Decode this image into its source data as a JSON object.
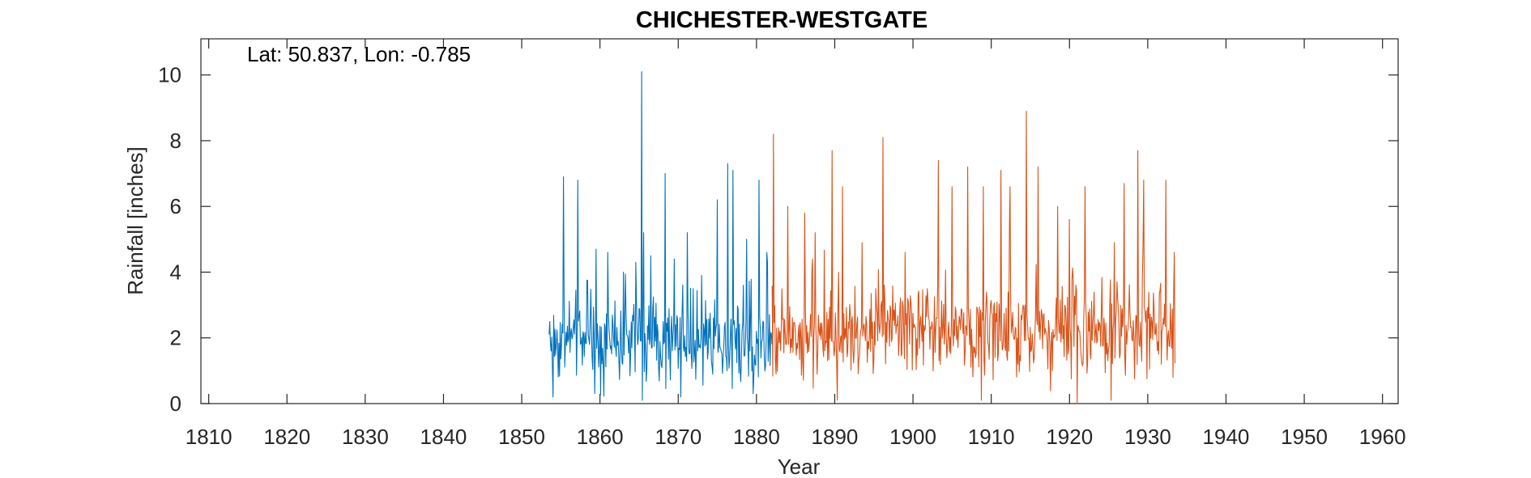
{
  "chart_data": {
    "type": "line",
    "title": "CHICHESTER-WESTGATE",
    "annotation": "Lat: 50.837, Lon: -0.785",
    "xlabel": "Year",
    "ylabel": "Rainfall [inches]",
    "xlim": [
      1809,
      1962
    ],
    "ylim": [
      0,
      11.1
    ],
    "xticks": [
      1810,
      1820,
      1830,
      1840,
      1850,
      1860,
      1870,
      1880,
      1890,
      1900,
      1910,
      1920,
      1930,
      1940,
      1950,
      1960
    ],
    "yticks": [
      0,
      2,
      4,
      6,
      8,
      10
    ],
    "grid": false,
    "legend": "none",
    "note": "monthly series, key points estimated from figure; remaining months are sampled within the visible range",
    "series": [
      {
        "color": "#0072BD",
        "x_start": 1853.5,
        "x_end": 1882.0,
        "step": 0.0833,
        "base": 1.9,
        "spread": 1.2,
        "peaks": [
          [
            1853.6,
            2.5
          ],
          [
            1854.0,
            0.2
          ],
          [
            1855.3,
            6.9
          ],
          [
            1857.2,
            6.8
          ],
          [
            1859.5,
            4.7
          ],
          [
            1861.0,
            4.6
          ],
          [
            1863.0,
            4.0
          ],
          [
            1864.6,
            4.3
          ],
          [
            1865.3,
            10.1
          ],
          [
            1865.6,
            5.2
          ],
          [
            1866.5,
            4.5
          ],
          [
            1868.3,
            7.0
          ],
          [
            1869.5,
            4.4
          ],
          [
            1871.2,
            5.2
          ],
          [
            1873.0,
            3.9
          ],
          [
            1875.0,
            6.2
          ],
          [
            1876.3,
            7.3
          ],
          [
            1877.0,
            7.1
          ],
          [
            1878.7,
            5.0
          ],
          [
            1880.3,
            6.8
          ],
          [
            1881.3,
            4.6
          ],
          [
            1865.4,
            0.1
          ],
          [
            1870.3,
            0.2
          ],
          [
            1879.6,
            0.3
          ]
        ]
      },
      {
        "color": "#D95319",
        "x_start": 1882.0,
        "x_end": 1933.5,
        "step": 0.0833,
        "base": 2.2,
        "spread": 1.3,
        "peaks": [
          [
            1882.2,
            8.2
          ],
          [
            1884.0,
            6.0
          ],
          [
            1886.2,
            5.8
          ],
          [
            1887.5,
            5.2
          ],
          [
            1889.7,
            7.7
          ],
          [
            1891.0,
            6.6
          ],
          [
            1893.5,
            4.9
          ],
          [
            1896.2,
            8.1
          ],
          [
            1899.0,
            4.6
          ],
          [
            1903.2,
            7.4
          ],
          [
            1905.0,
            6.6
          ],
          [
            1907.0,
            7.2
          ],
          [
            1909.0,
            6.6
          ],
          [
            1911.2,
            7.1
          ],
          [
            1912.4,
            6.6
          ],
          [
            1914.5,
            8.9
          ],
          [
            1916.0,
            7.2
          ],
          [
            1918.5,
            6.0
          ],
          [
            1920.0,
            5.6
          ],
          [
            1922.0,
            6.6
          ],
          [
            1925.7,
            4.9
          ],
          [
            1927.0,
            6.7
          ],
          [
            1928.7,
            7.7
          ],
          [
            1929.5,
            6.8
          ],
          [
            1932.3,
            6.8
          ],
          [
            1933.2,
            0.8
          ],
          [
            1890.3,
            0.1
          ],
          [
            1908.7,
            0.1
          ],
          [
            1921.0,
            0.0
          ],
          [
            1925.3,
            0.1
          ]
        ]
      }
    ]
  }
}
